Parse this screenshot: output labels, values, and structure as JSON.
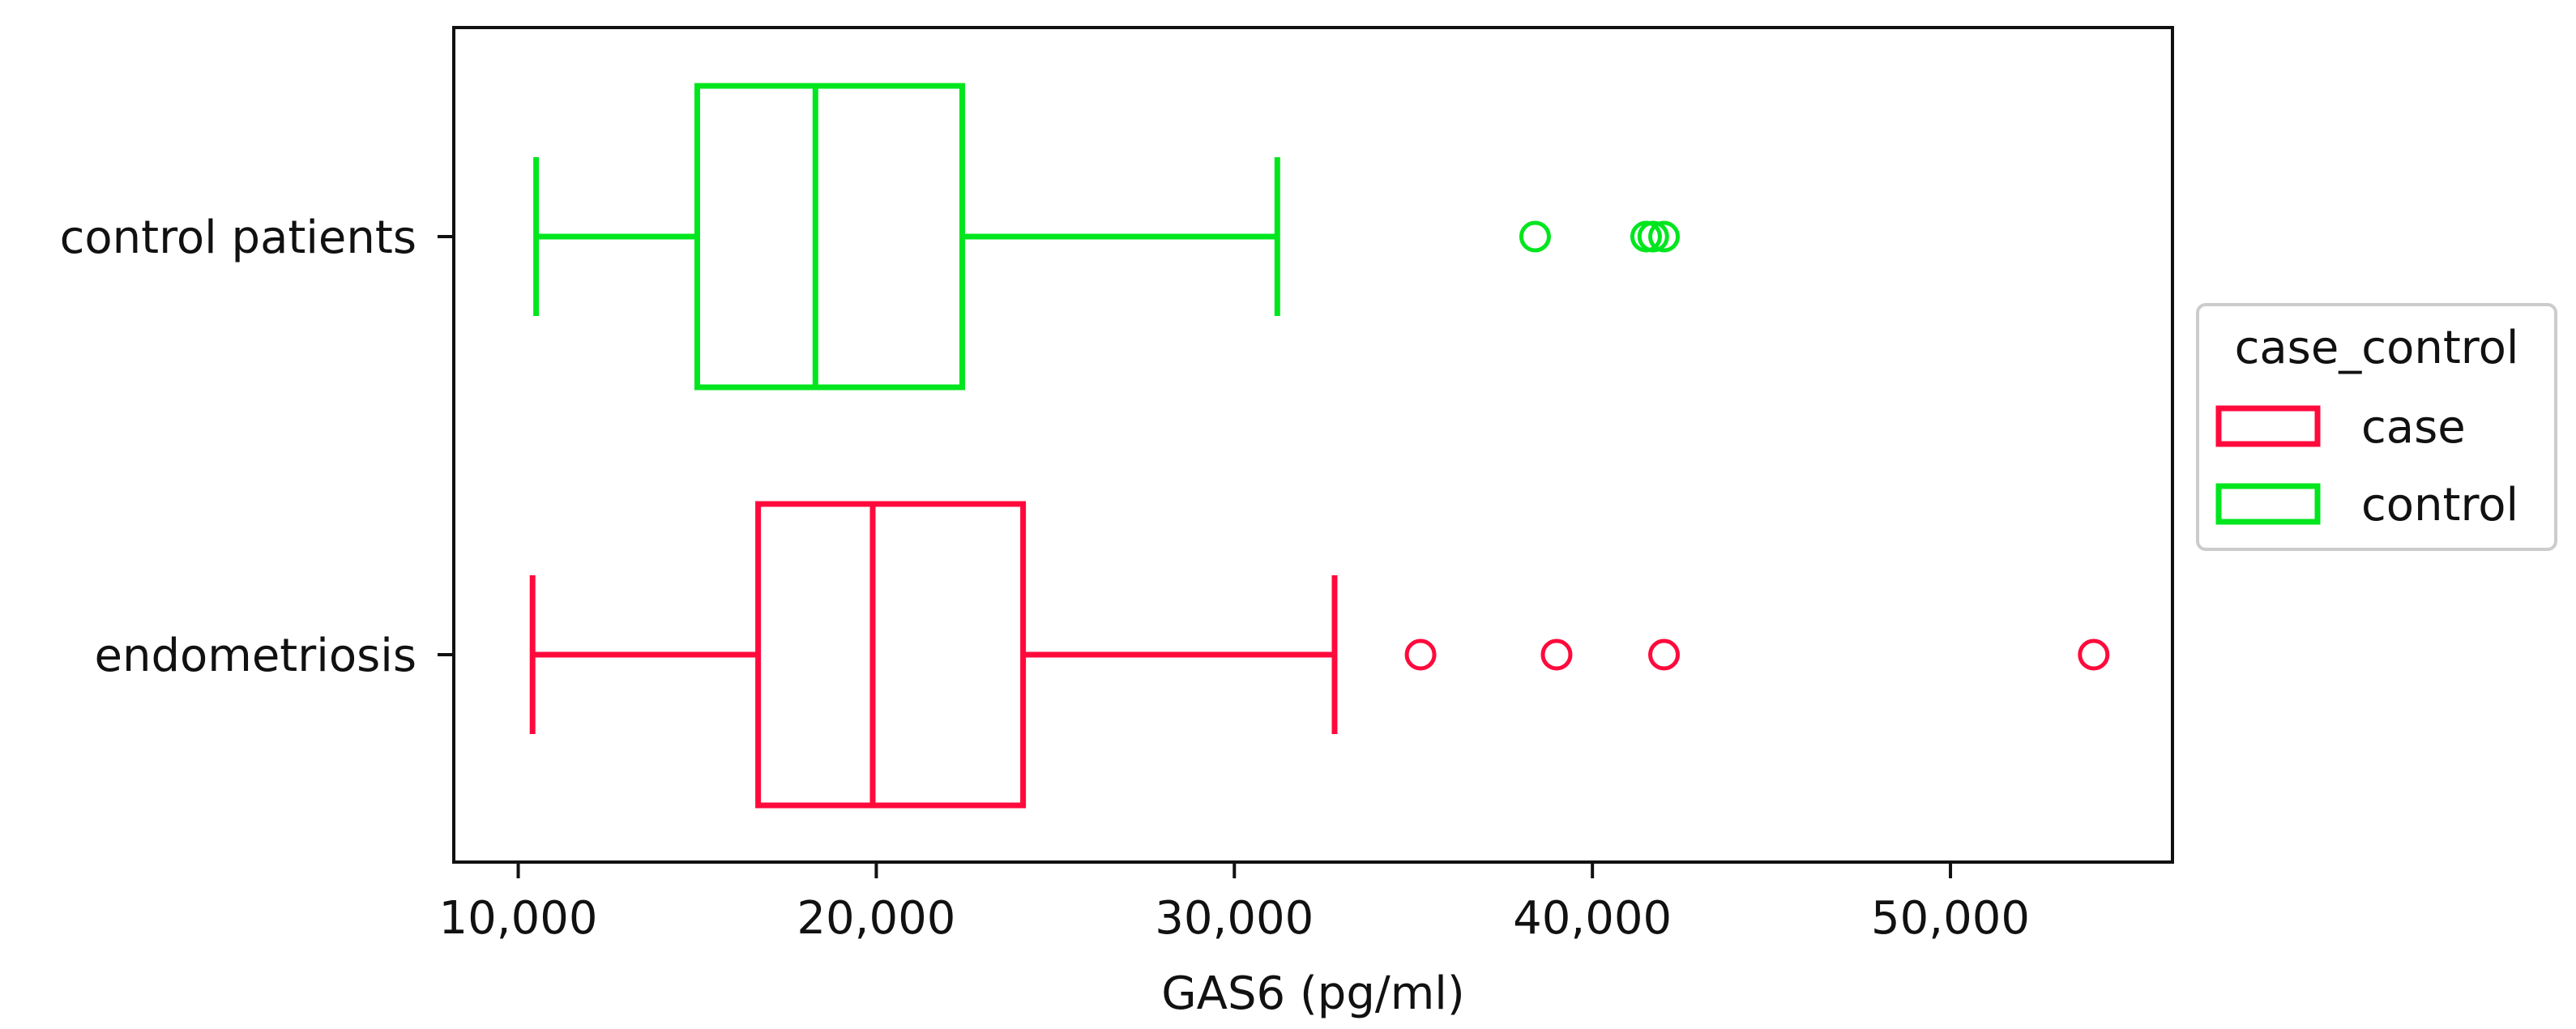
{
  "chart_data": {
    "type": "boxplot",
    "orientation": "horizontal",
    "title": "",
    "xlabel": "GAS6 (pg/ml)",
    "ylabel": "",
    "xlim": [
      8200,
      56200
    ],
    "xticks": [
      10000,
      20000,
      30000,
      40000,
      50000
    ],
    "xtick_labels": [
      "10,000",
      "20,000",
      "30,000",
      "40,000",
      "50,000"
    ],
    "categories": [
      "control patients",
      "endometriosis"
    ],
    "grid": false,
    "legend": {
      "title": "case_control",
      "placement": "right",
      "entries": [
        {
          "label": "case",
          "color": "#ff0a3c"
        },
        {
          "label": "control",
          "color": "#00e61e"
        }
      ]
    },
    "series": [
      {
        "name": "control",
        "category": "control patients",
        "color": "#00e61e",
        "whisker_low": 10500,
        "q1": 15000,
        "median": 18300,
        "q3": 22400,
        "whisker_high": 31200,
        "outliers": [
          38400,
          41500,
          41700,
          42000
        ]
      },
      {
        "name": "case",
        "category": "endometriosis",
        "color": "#ff0a3c",
        "whisker_low": 10400,
        "q1": 16700,
        "median": 19900,
        "q3": 24100,
        "whisker_high": 32800,
        "outliers": [
          35200,
          39000,
          42000,
          54000
        ]
      }
    ]
  }
}
